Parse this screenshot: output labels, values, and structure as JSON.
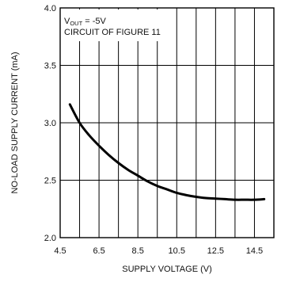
{
  "chart_data": {
    "type": "line",
    "xlabel": "SUPPLY VOLTAGE (V)",
    "ylabel": "NO-LOAD SUPPLY CURRENT (mA)",
    "xlim": [
      4.5,
      15.5
    ],
    "ylim": [
      2.0,
      4.0
    ],
    "x_ticks": [
      "4.5",
      "6.5",
      "8.5",
      "10.5",
      "12.5",
      "14.5"
    ],
    "y_ticks": [
      "2.0",
      "2.5",
      "3.0",
      "3.5",
      "4.0"
    ],
    "x_grid": [
      4.5,
      5.5,
      6.5,
      7.5,
      8.5,
      9.5,
      10.5,
      11.5,
      12.5,
      13.5,
      14.5,
      15.5
    ],
    "y_grid": [
      2.0,
      2.5,
      3.0,
      3.5,
      4.0
    ],
    "grid": true,
    "annotation": {
      "v_main": "V",
      "v_sub": "OUT",
      "v_value": " = -5V",
      "line2": "CIRCUIT OF FIGURE 11"
    },
    "series": [
      {
        "x": [
          5.0,
          5.5,
          6.0,
          6.5,
          7.0,
          7.5,
          8.0,
          8.5,
          9.0,
          9.5,
          10.0,
          10.5,
          11.0,
          11.5,
          12.0,
          12.5,
          13.0,
          13.5,
          14.0,
          14.5,
          15.0
        ],
        "values": [
          3.16,
          3.0,
          2.89,
          2.8,
          2.72,
          2.65,
          2.59,
          2.54,
          2.49,
          2.45,
          2.42,
          2.39,
          2.37,
          2.355,
          2.345,
          2.34,
          2.335,
          2.33,
          2.33,
          2.33,
          2.335
        ]
      }
    ],
    "colors": {
      "line": "#000000",
      "grid": "#000000"
    }
  }
}
